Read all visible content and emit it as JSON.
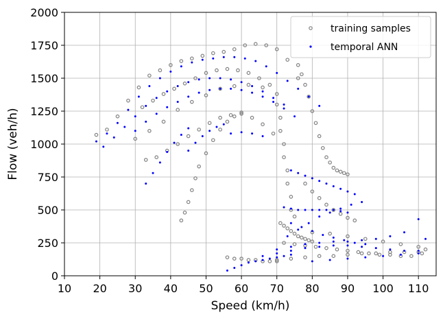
{
  "chart_data": {
    "type": "scatter",
    "xlabel": "Speed (km/h)",
    "ylabel": "Flow (veh/h)",
    "xlim": [
      10,
      115
    ],
    "ylim": [
      0,
      2000
    ],
    "xticks": [
      10,
      20,
      30,
      40,
      50,
      60,
      70,
      80,
      90,
      100,
      110
    ],
    "yticks": [
      0,
      250,
      500,
      750,
      1000,
      1250,
      1500,
      1750,
      2000
    ],
    "grid": true,
    "legend_position": "top-right",
    "series": [
      {
        "name": "training samples",
        "marker": "hollow-circle",
        "color": "#808080",
        "x": [
          19,
          22,
          25,
          28,
          31,
          34,
          37,
          40,
          43,
          46,
          49,
          52,
          55,
          58,
          61,
          64,
          67,
          70,
          73,
          76,
          30,
          34,
          38,
          42,
          46,
          50,
          54,
          58,
          62,
          66,
          70,
          33,
          36,
          39,
          42,
          45,
          48,
          51,
          54,
          57,
          60,
          63,
          66,
          69,
          43,
          44,
          45,
          46,
          47,
          48,
          50,
          52,
          54,
          56,
          58,
          60,
          32,
          35,
          38,
          41,
          44,
          47,
          50,
          53,
          56,
          59,
          62,
          65,
          68,
          70,
          71,
          71,
          72,
          72,
          73,
          73,
          74,
          74,
          75,
          76,
          77,
          78,
          79,
          80,
          81,
          82,
          83,
          84,
          85,
          86,
          87,
          88,
          89,
          90,
          78,
          80,
          82,
          84,
          86,
          88,
          90,
          92,
          71,
          72,
          73,
          74,
          75,
          76,
          77,
          78,
          79,
          80,
          72,
          75,
          78,
          81,
          84,
          87,
          90,
          93,
          96,
          99,
          102,
          105,
          108,
          111,
          70,
          74,
          78,
          82,
          86,
          90,
          94,
          98,
          102,
          106,
          110,
          56,
          58,
          60,
          62,
          64,
          66,
          68,
          70,
          80,
          85,
          90,
          95,
          100,
          105,
          110,
          112
        ],
        "y": [
          1070,
          1110,
          1210,
          1330,
          1430,
          1520,
          1560,
          1600,
          1630,
          1650,
          1670,
          1690,
          1700,
          1720,
          1750,
          1760,
          1750,
          1720,
          1640,
          1500,
          1040,
          1100,
          1170,
          1260,
          1320,
          1370,
          1420,
          1440,
          1450,
          1430,
          1380,
          880,
          900,
          950,
          1000,
          1060,
          1110,
          1160,
          1200,
          1220,
          1230,
          1200,
          1150,
          1080,
          420,
          480,
          560,
          650,
          740,
          830,
          930,
          1030,
          1110,
          1170,
          1210,
          1240,
          1280,
          1330,
          1380,
          1420,
          1460,
          1500,
          1540,
          1560,
          1570,
          1560,
          1540,
          1500,
          1450,
          1300,
          1200,
          1100,
          1000,
          900,
          800,
          700,
          600,
          500,
          450,
          1600,
          1530,
          1450,
          1360,
          1250,
          1160,
          1060,
          970,
          900,
          860,
          820,
          800,
          790,
          780,
          770,
          700,
          640,
          590,
          540,
          500,
          470,
          440,
          420,
          400,
          380,
          360,
          340,
          320,
          300,
          290,
          280,
          270,
          260,
          250,
          240,
          230,
          220,
          210,
          200,
          190,
          180,
          170,
          160,
          160,
          150,
          150,
          170,
          120,
          130,
          140,
          150,
          150,
          160,
          170,
          170,
          180,
          180,
          180,
          140,
          130,
          130,
          120,
          120,
          110,
          110,
          110,
          330,
          320,
          300,
          280,
          260,
          240,
          220,
          200
        ]
      },
      {
        "name": "temporal ANN",
        "marker": "dot",
        "color": "#0000ff",
        "x": [
          19,
          22,
          25,
          28,
          31,
          34,
          37,
          40,
          43,
          46,
          49,
          52,
          55,
          58,
          61,
          64,
          67,
          70,
          73,
          76,
          79,
          82,
          21,
          24,
          27,
          30,
          33,
          36,
          39,
          42,
          45,
          48,
          51,
          54,
          57,
          60,
          63,
          66,
          69,
          72,
          30,
          33,
          36,
          39,
          42,
          45,
          48,
          51,
          54,
          57,
          60,
          63,
          66,
          69,
          72,
          75,
          33,
          35,
          37,
          39,
          41,
          43,
          45,
          45,
          47,
          49,
          51,
          53,
          55,
          57,
          60,
          63,
          66,
          74,
          76,
          78,
          80,
          82,
          84,
          86,
          88,
          90,
          92,
          72,
          74,
          76,
          78,
          80,
          82,
          84,
          86,
          88,
          90,
          73,
          76,
          79,
          82,
          85,
          88,
          91,
          94,
          74,
          77,
          80,
          83,
          86,
          89,
          92,
          95,
          70,
          74,
          78,
          82,
          86,
          90,
          94,
          98,
          102,
          106,
          110,
          66,
          70,
          74,
          78,
          82,
          86,
          90,
          94,
          98,
          102,
          106,
          110,
          112,
          56,
          58,
          60,
          62,
          64,
          66,
          68,
          70,
          72,
          74,
          80,
          85,
          90,
          95,
          100,
          105,
          110
        ],
        "y": [
          1020,
          1080,
          1160,
          1260,
          1360,
          1440,
          1500,
          1550,
          1590,
          1620,
          1640,
          1650,
          1660,
          1660,
          1650,
          1630,
          1590,
          1540,
          1480,
          1420,
          1360,
          1290,
          980,
          1050,
          1130,
          1210,
          1290,
          1350,
          1400,
          1440,
          1470,
          1490,
          1500,
          1500,
          1490,
          1470,
          1440,
          1400,
          1350,
          1300,
          1100,
          1170,
          1230,
          1280,
          1320,
          1360,
          1390,
          1410,
          1420,
          1420,
          1410,
          1390,
          1360,
          1320,
          1270,
          1210,
          700,
          780,
          860,
          940,
          1010,
          1070,
          1120,
          950,
          1010,
          1060,
          1100,
          1130,
          1150,
          1080,
          1090,
          1080,
          1060,
          800,
          780,
          760,
          740,
          720,
          700,
          680,
          660,
          640,
          620,
          520,
          510,
          500,
          500,
          500,
          500,
          500,
          500,
          490,
          480,
          300,
          350,
          400,
          450,
          480,
          510,
          540,
          560,
          400,
          370,
          340,
          310,
          290,
          270,
          250,
          240,
          200,
          220,
          240,
          250,
          260,
          260,
          270,
          280,
          300,
          330,
          430,
          150,
          170,
          190,
          210,
          220,
          230,
          230,
          220,
          210,
          200,
          190,
          190,
          280,
          40,
          60,
          80,
          100,
          110,
          120,
          130,
          140,
          150,
          160,
          110,
          120,
          130,
          140,
          150,
          160,
          170
        ]
      }
    ]
  }
}
